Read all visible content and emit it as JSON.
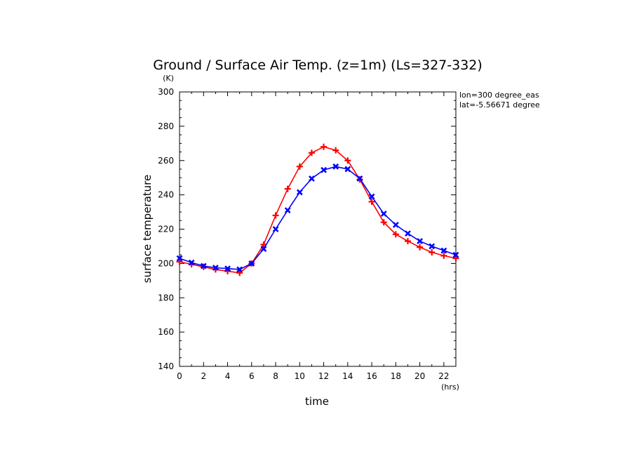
{
  "chart_data": {
    "type": "line",
    "title": "Ground / Surface Air Temp. (z=1m) (Ls=327-332)",
    "xlabel": "time",
    "ylabel": "surface temperature",
    "x_unit": "(hrs)",
    "y_unit": "(K)",
    "annotations": [
      "lon=300 degree_eas",
      "lat=-5.56671 degree"
    ],
    "xlim": [
      0,
      23
    ],
    "ylim": [
      140,
      300
    ],
    "xticks": [
      0,
      2,
      4,
      6,
      8,
      10,
      12,
      14,
      16,
      18,
      20,
      22
    ],
    "yticks": [
      140,
      160,
      180,
      200,
      220,
      240,
      260,
      280,
      300
    ],
    "grid": false,
    "x": [
      0,
      1,
      2,
      3,
      4,
      5,
      6,
      7,
      8,
      9,
      10,
      11,
      12,
      13,
      14,
      15,
      16,
      17,
      18,
      19,
      20,
      21,
      22,
      23
    ],
    "series": [
      {
        "color": "#ff0000",
        "marker": "plus",
        "values": [
          201,
          199.5,
          198,
          196.5,
          195.5,
          194.5,
          200,
          211,
          228,
          243.5,
          256.5,
          264.5,
          268,
          266,
          260,
          249,
          236,
          224,
          217,
          213,
          209.5,
          206.5,
          204.5,
          203
        ]
      },
      {
        "color": "#0000ff",
        "marker": "x",
        "values": [
          203,
          200.5,
          198.5,
          197.5,
          197,
          196.5,
          200,
          208.5,
          220,
          231,
          241.5,
          249.5,
          254.5,
          256.5,
          255,
          249.5,
          239,
          229,
          222.5,
          217.5,
          213,
          210,
          207.5,
          205
        ]
      }
    ]
  }
}
